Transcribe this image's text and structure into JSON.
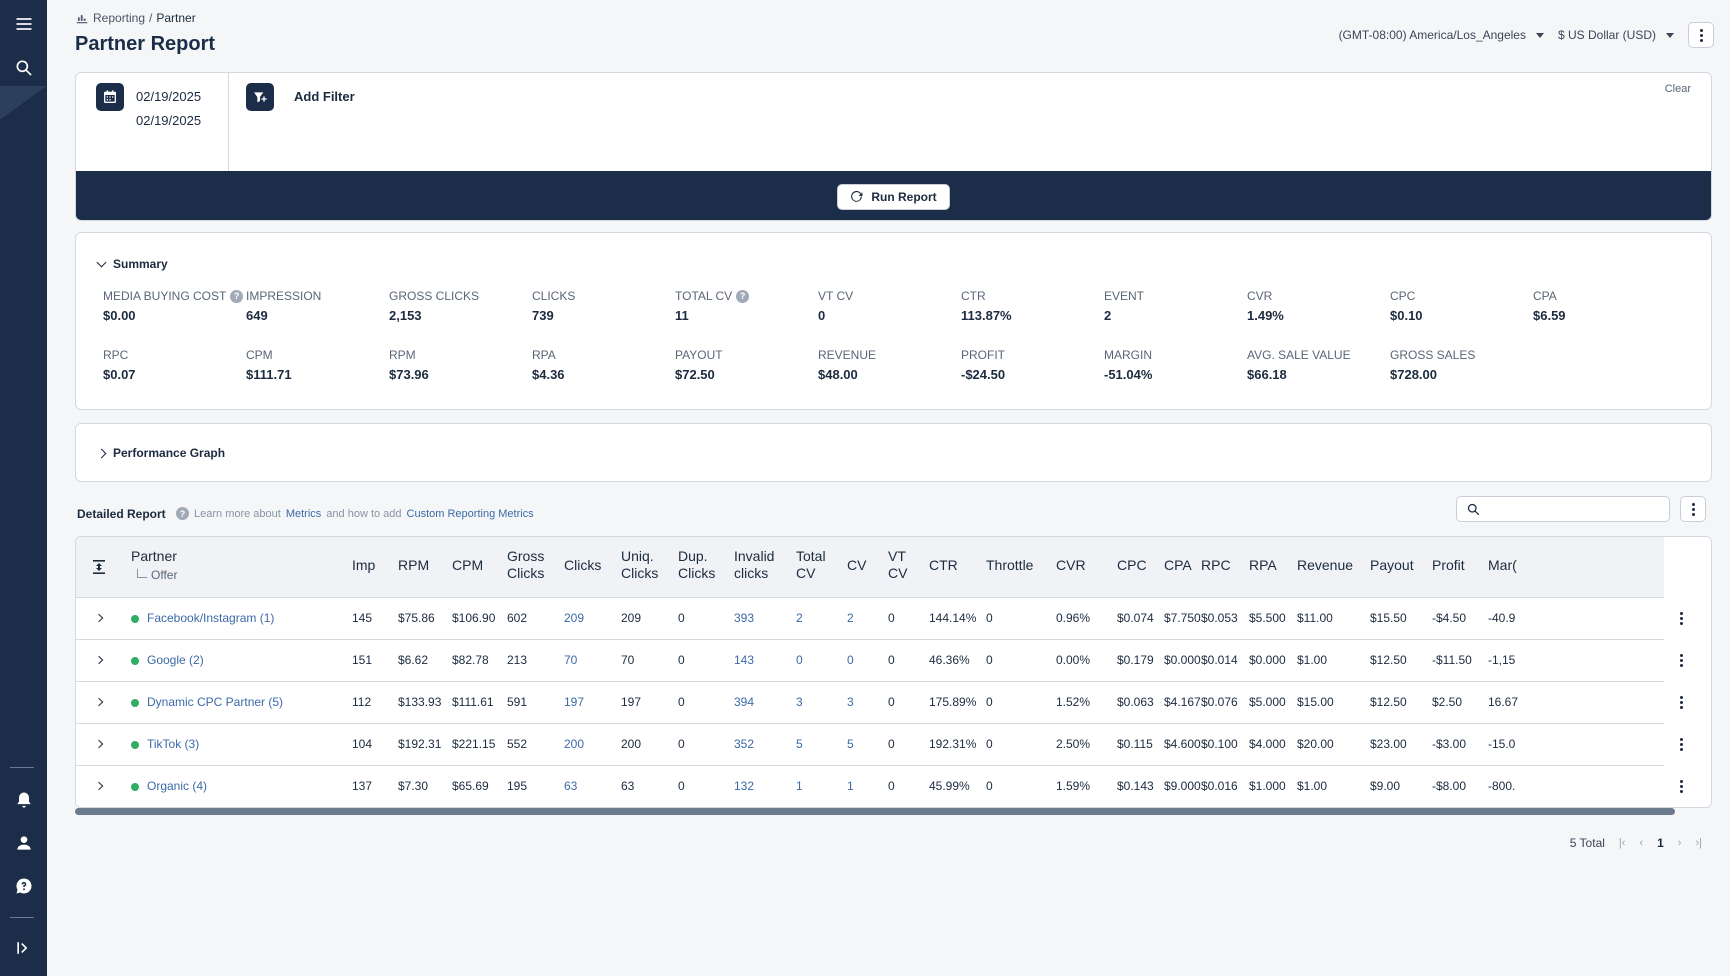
{
  "breadcrumb": {
    "parent": "Reporting",
    "separator": "/",
    "current": "Partner"
  },
  "page_title": "Partner Report",
  "timezone": "(GMT-08:00) America/Los_Angeles",
  "currency": "$ US Dollar (USD)",
  "filters": {
    "date_start": "02/19/2025",
    "date_end": "02/19/2025",
    "add_filter_label": "Add Filter",
    "clear_label": "Clear",
    "run_label": "Run Report"
  },
  "summary": {
    "title": "Summary",
    "metrics_row1": [
      {
        "label": "MEDIA BUYING COST",
        "value": "$0.00",
        "help": "?"
      },
      {
        "label": "IMPRESSION",
        "value": "649"
      },
      {
        "label": "GROSS CLICKS",
        "value": "2,153"
      },
      {
        "label": "CLICKS",
        "value": "739"
      },
      {
        "label": "TOTAL CV",
        "value": "11",
        "help": "?"
      },
      {
        "label": "VT CV",
        "value": "0"
      },
      {
        "label": "CTR",
        "value": "113.87%"
      },
      {
        "label": "EVENT",
        "value": "2"
      },
      {
        "label": "CVR",
        "value": "1.49%"
      },
      {
        "label": "CPC",
        "value": "$0.10"
      },
      {
        "label": "CPA",
        "value": "$6.59"
      }
    ],
    "metrics_row2": [
      {
        "label": "RPC",
        "value": "$0.07"
      },
      {
        "label": "CPM",
        "value": "$111.71"
      },
      {
        "label": "RPM",
        "value": "$73.96"
      },
      {
        "label": "RPA",
        "value": "$4.36"
      },
      {
        "label": "PAYOUT",
        "value": "$72.50"
      },
      {
        "label": "REVENUE",
        "value": "$48.00"
      },
      {
        "label": "PROFIT",
        "value": "-$24.50"
      },
      {
        "label": "MARGIN",
        "value": "-51.04%"
      },
      {
        "label": "AVG. SALE VALUE",
        "value": "$66.18"
      },
      {
        "label": "GROSS SALES",
        "value": "$728.00"
      }
    ]
  },
  "performance_graph_title": "Performance Graph",
  "detailed": {
    "title": "Detailed Report",
    "help": "?",
    "learn_prefix": "Learn more about",
    "learn_link1": "Metrics",
    "learn_middle": "and how to add",
    "learn_link2": "Custom Reporting Metrics",
    "search_placeholder": ""
  },
  "table": {
    "partner_header": "Partner",
    "offer_subheader": "Offer",
    "headers": [
      "Imp",
      "RPM",
      "CPM",
      "Gross\nClicks",
      "Clicks",
      "Uniq.\nClicks",
      "Dup.\nClicks",
      "Invalid\nclicks",
      "Total\nCV",
      "CV",
      "VT\nCV",
      "CTR",
      "Throttle",
      "CVR",
      "CPC",
      "CPA",
      "RPC",
      "RPA",
      "Revenue",
      "Payout",
      "Profit",
      "Mar("
    ],
    "rows": [
      {
        "partner": "Facebook/Instagram (1)",
        "status_color": "#2fae64",
        "cells": [
          "145",
          "$75.86",
          "$106.90",
          "602",
          "209",
          "209",
          "0",
          "393",
          "2",
          "2",
          "0",
          "144.14%",
          "0",
          "0.96%",
          "$0.074",
          "$7.750",
          "$0.053",
          "$5.500",
          "$11.00",
          "$15.50",
          "-$4.50",
          "-40.9"
        ]
      },
      {
        "partner": "Google (2)",
        "status_color": "#2fae64",
        "cells": [
          "151",
          "$6.62",
          "$82.78",
          "213",
          "70",
          "70",
          "0",
          "143",
          "0",
          "0",
          "0",
          "46.36%",
          "0",
          "0.00%",
          "$0.179",
          "$0.000",
          "$0.014",
          "$0.000",
          "$1.00",
          "$12.50",
          "-$11.50",
          "-1,15"
        ]
      },
      {
        "partner": "Dynamic CPC Partner (5)",
        "status_color": "#2fae64",
        "cells": [
          "112",
          "$133.93",
          "$111.61",
          "591",
          "197",
          "197",
          "0",
          "394",
          "3",
          "3",
          "0",
          "175.89%",
          "0",
          "1.52%",
          "$0.063",
          "$4.167",
          "$0.076",
          "$5.000",
          "$15.00",
          "$12.50",
          "$2.50",
          "16.67"
        ]
      },
      {
        "partner": "TikTok (3)",
        "status_color": "#2fae64",
        "cells": [
          "104",
          "$192.31",
          "$221.15",
          "552",
          "200",
          "200",
          "0",
          "352",
          "5",
          "5",
          "0",
          "192.31%",
          "0",
          "2.50%",
          "$0.115",
          "$4.600",
          "$0.100",
          "$4.000",
          "$20.00",
          "$23.00",
          "-$3.00",
          "-15.0"
        ]
      },
      {
        "partner": "Organic (4)",
        "status_color": "#2fae64",
        "cells": [
          "137",
          "$7.30",
          "$65.69",
          "195",
          "63",
          "63",
          "0",
          "132",
          "1",
          "1",
          "0",
          "45.99%",
          "0",
          "1.59%",
          "$0.143",
          "$9.000",
          "$0.016",
          "$1.000",
          "$1.00",
          "$9.00",
          "-$8.00",
          "-800."
        ]
      }
    ]
  },
  "pagination": {
    "total_label": "5 Total",
    "first": "|‹",
    "prev": "‹",
    "page": "1",
    "next": "›",
    "last": "›|"
  }
}
